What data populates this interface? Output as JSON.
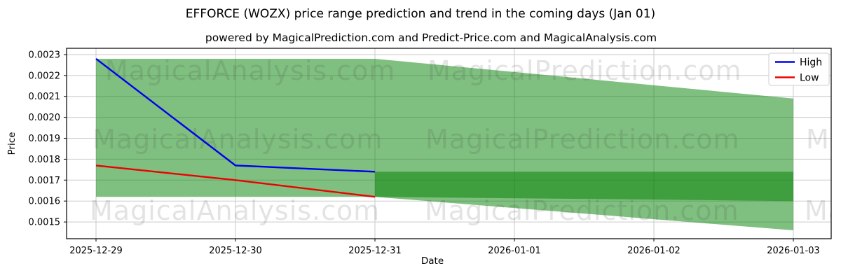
{
  "figure": {
    "title": "EFFORCE (WOZX) price range prediction and trend in the coming days (Jan 01)",
    "subtitle": "powered by MagicalPrediction.com and Predict-Price.com and MagicalAnalysis.com"
  },
  "watermarks": [
    "MagicalAnalysis.com",
    "MagicalPrediction.com"
  ],
  "colors": {
    "grid": "#c9c9c9",
    "spine": "#000000",
    "background": "#ffffff",
    "legend_border": "#cfcfcf",
    "band_green": "#008000",
    "high_blue": "#0000ee",
    "low_red": "#ee0000"
  },
  "chart_data": {
    "type": "line",
    "title": "EFFORCE (WOZX) price range prediction and trend in the coming days (Jan 01)",
    "subtitle": "powered by MagicalPrediction.com and Predict-Price.com and MagicalAnalysis.com",
    "xlabel": "Date",
    "ylabel": "Price",
    "categories": [
      "2025-12-29",
      "2025-12-30",
      "2025-12-31",
      "2026-01-01",
      "2026-01-02",
      "2026-01-03"
    ],
    "yticks": [
      0.0015,
      0.0016,
      0.0017,
      0.0018,
      0.0019,
      0.002,
      0.0021,
      0.0022,
      0.0023
    ],
    "ylim": [
      0.00142,
      0.00233
    ],
    "grid": true,
    "legend": {
      "position": "upper right",
      "entries": [
        "High",
        "Low"
      ]
    },
    "series": [
      {
        "name": "High",
        "color": "#0000ee",
        "dates": [
          "2025-12-29",
          "2025-12-30",
          "2025-12-31"
        ],
        "values": [
          0.00228,
          0.00177,
          0.00174
        ]
      },
      {
        "name": "Low",
        "color": "#ee0000",
        "dates": [
          "2025-12-29",
          "2025-12-30",
          "2025-12-31"
        ],
        "values": [
          0.00177,
          0.0017,
          0.00162
        ]
      }
    ],
    "bands": [
      {
        "name": "history-range",
        "color": "#008000",
        "opacity": 0.5,
        "dates": [
          "2025-12-29",
          "2025-12-31"
        ],
        "upper": [
          0.00228,
          0.00228
        ],
        "lower": [
          0.00162,
          0.00162
        ]
      },
      {
        "name": "forecast-range",
        "color": "#008000",
        "opacity": 0.5,
        "dates": [
          "2025-12-31",
          "2026-01-03"
        ],
        "upper": [
          0.00228,
          0.00209
        ],
        "lower": [
          0.00162,
          0.00146
        ]
      },
      {
        "name": "forecast-core",
        "color": "#008000",
        "opacity": 0.5,
        "dates": [
          "2025-12-31",
          "2026-01-03"
        ],
        "upper": [
          0.00174,
          0.00174
        ],
        "lower": [
          0.00162,
          0.0016
        ]
      }
    ]
  }
}
